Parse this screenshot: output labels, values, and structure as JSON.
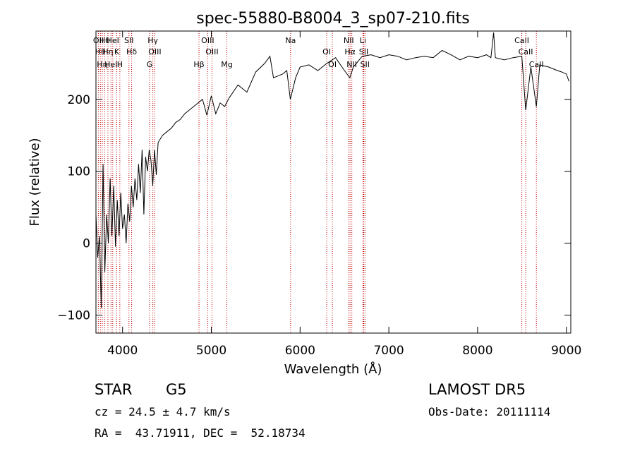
{
  "chart_data": {
    "type": "line",
    "title": "spec-55880-B8004_3_sp07-210.fits",
    "xlabel": "Wavelength (Å)",
    "ylabel": "Flux (relative)",
    "xlim": [
      3700,
      9050
    ],
    "ylim": [
      -125,
      295
    ],
    "xticks": [
      4000,
      5000,
      6000,
      7000,
      8000,
      9000
    ],
    "yticks": [
      -100,
      0,
      100,
      200
    ],
    "grid": false,
    "line_color": "#000000",
    "marker_color": "#c00000",
    "series": [
      {
        "x": [
          3700,
          3720,
          3740,
          3760,
          3780,
          3800,
          3820,
          3840,
          3860,
          3880,
          3900,
          3920,
          3940,
          3960,
          3980,
          4000,
          4020,
          4040,
          4060,
          4080,
          4100,
          4120,
          4140,
          4160,
          4180,
          4200,
          4220,
          4240,
          4260,
          4280,
          4300,
          4320,
          4340,
          4360,
          4380,
          4400,
          4450,
          4500,
          4550,
          4600,
          4650,
          4700,
          4750,
          4800,
          4850,
          4900,
          4950,
          5000,
          5050,
          5100,
          5150,
          5200,
          5300,
          5400,
          5500,
          5600,
          5660,
          5700,
          5800,
          5850,
          5890,
          5950,
          6000,
          6100,
          6200,
          6300,
          6400,
          6500,
          6560,
          6600,
          6700,
          6800,
          6900,
          7000,
          7100,
          7200,
          7300,
          7400,
          7500,
          7600,
          7700,
          7800,
          7900,
          8000,
          8100,
          8150,
          8180,
          8200,
          8300,
          8400,
          8498,
          8542,
          8600,
          8662,
          8700,
          8800,
          8900,
          8950,
          9000,
          9030
        ],
        "y": [
          40,
          -20,
          10,
          -90,
          110,
          -40,
          40,
          0,
          90,
          10,
          80,
          -5,
          60,
          10,
          70,
          20,
          40,
          0,
          55,
          30,
          80,
          50,
          90,
          60,
          110,
          70,
          130,
          40,
          120,
          100,
          130,
          115,
          80,
          130,
          95,
          140,
          150,
          155,
          160,
          168,
          172,
          180,
          185,
          190,
          195,
          200,
          178,
          205,
          180,
          195,
          190,
          202,
          220,
          210,
          238,
          250,
          260,
          230,
          235,
          240,
          200,
          230,
          245,
          248,
          240,
          250,
          258,
          240,
          230,
          245,
          260,
          262,
          258,
          262,
          260,
          255,
          258,
          260,
          258,
          268,
          262,
          255,
          260,
          258,
          262,
          258,
          293,
          258,
          255,
          258,
          260,
          185,
          245,
          190,
          248,
          245,
          240,
          238,
          235,
          225
        ]
      }
    ],
    "line_markers": [
      {
        "wavelength": 3727,
        "label": "OII"
      },
      {
        "wavelength": 3750,
        "label": "Hθ"
      },
      {
        "wavelength": 3771,
        "label": "Hη"
      },
      {
        "wavelength": 3798,
        "label": "Hθ"
      },
      {
        "wavelength": 3835,
        "label": "Hη"
      },
      {
        "wavelength": 3869,
        "label": "HeI"
      },
      {
        "wavelength": 3889,
        "label": "HeI"
      },
      {
        "wavelength": 3934,
        "label": "K"
      },
      {
        "wavelength": 3969,
        "label": "H"
      },
      {
        "wavelength": 4072,
        "label": "SII"
      },
      {
        "wavelength": 4102,
        "label": "Hδ"
      },
      {
        "wavelength": 4304,
        "label": "G"
      },
      {
        "wavelength": 4341,
        "label": "Hγ"
      },
      {
        "wavelength": 4363,
        "label": "OIII"
      },
      {
        "wavelength": 4861,
        "label": "Hβ"
      },
      {
        "wavelength": 4959,
        "label": "OIII"
      },
      {
        "wavelength": 5007,
        "label": "OIII"
      },
      {
        "wavelength": 5175,
        "label": "Mg"
      },
      {
        "wavelength": 5893,
        "label": "Na"
      },
      {
        "wavelength": 6300,
        "label": "OI"
      },
      {
        "wavelength": 6364,
        "label": "OI"
      },
      {
        "wavelength": 6548,
        "label": "NII"
      },
      {
        "wavelength": 6563,
        "label": "Hα"
      },
      {
        "wavelength": 6583,
        "label": "NII"
      },
      {
        "wavelength": 6708,
        "label": "Li"
      },
      {
        "wavelength": 6717,
        "label": "SII"
      },
      {
        "wavelength": 6731,
        "label": "SII"
      },
      {
        "wavelength": 8498,
        "label": "CaII"
      },
      {
        "wavelength": 8542,
        "label": "CaII"
      },
      {
        "wavelength": 8662,
        "label": "CaII"
      }
    ]
  },
  "info": {
    "class_label": "STAR",
    "subclass": "G5",
    "survey": "LAMOST DR5",
    "cz_text": "cz = 24.5 ± 4.7 km/s",
    "obs_date_text": "Obs-Date: 20111114",
    "coords_text": "RA =  43.71911, DEC =  52.18734"
  }
}
